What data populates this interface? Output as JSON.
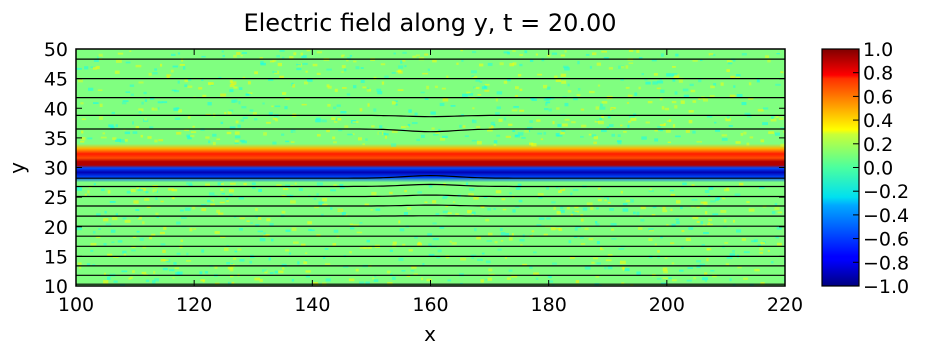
{
  "chart_data": {
    "type": "heatmap",
    "title": "Electric field along y, t = 20.00",
    "xlabel": "x",
    "ylabel": "y",
    "xlim": [
      100,
      220
    ],
    "ylim": [
      10,
      50
    ],
    "x_ticks": [
      "100",
      "120",
      "140",
      "160",
      "180",
      "200",
      "220"
    ],
    "y_ticks": [
      "10",
      "15",
      "20",
      "25",
      "30",
      "35",
      "40",
      "45",
      "50"
    ],
    "colorbar": {
      "colormap": "jet",
      "range": [
        -1.0,
        1.0
      ],
      "ticks": [
        "1.0",
        "0.8",
        "0.6",
        "0.4",
        "0.2",
        "0.0",
        "−0.2",
        "−0.4",
        "−0.6",
        "−0.8",
        "−1.0"
      ]
    },
    "field_profile": [
      {
        "y": 10.0,
        "value": 0.0
      },
      {
        "y": 27.5,
        "value": 0.0
      },
      {
        "y": 28.3,
        "value": -0.6
      },
      {
        "y": 29.2,
        "value": -0.9
      },
      {
        "y": 29.9,
        "value": -0.6
      },
      {
        "y": 30.4,
        "value": 0.9
      },
      {
        "y": 31.0,
        "value": 0.9
      },
      {
        "y": 31.6,
        "value": 0.6
      },
      {
        "y": 32.3,
        "value": 0.7
      },
      {
        "y": 33.2,
        "value": 0.4
      },
      {
        "y": 34.0,
        "value": 0.0
      },
      {
        "y": 50.0,
        "value": 0.0
      }
    ],
    "contour_lines_y": [
      10.3,
      11.8,
      13.4,
      15.0,
      16.7,
      18.4,
      20.1,
      21.8,
      23.5,
      25.1,
      26.8,
      28.2,
      36.5,
      38.8,
      41.8,
      45.0,
      48.3
    ],
    "perturbation_center_x": 160
  }
}
